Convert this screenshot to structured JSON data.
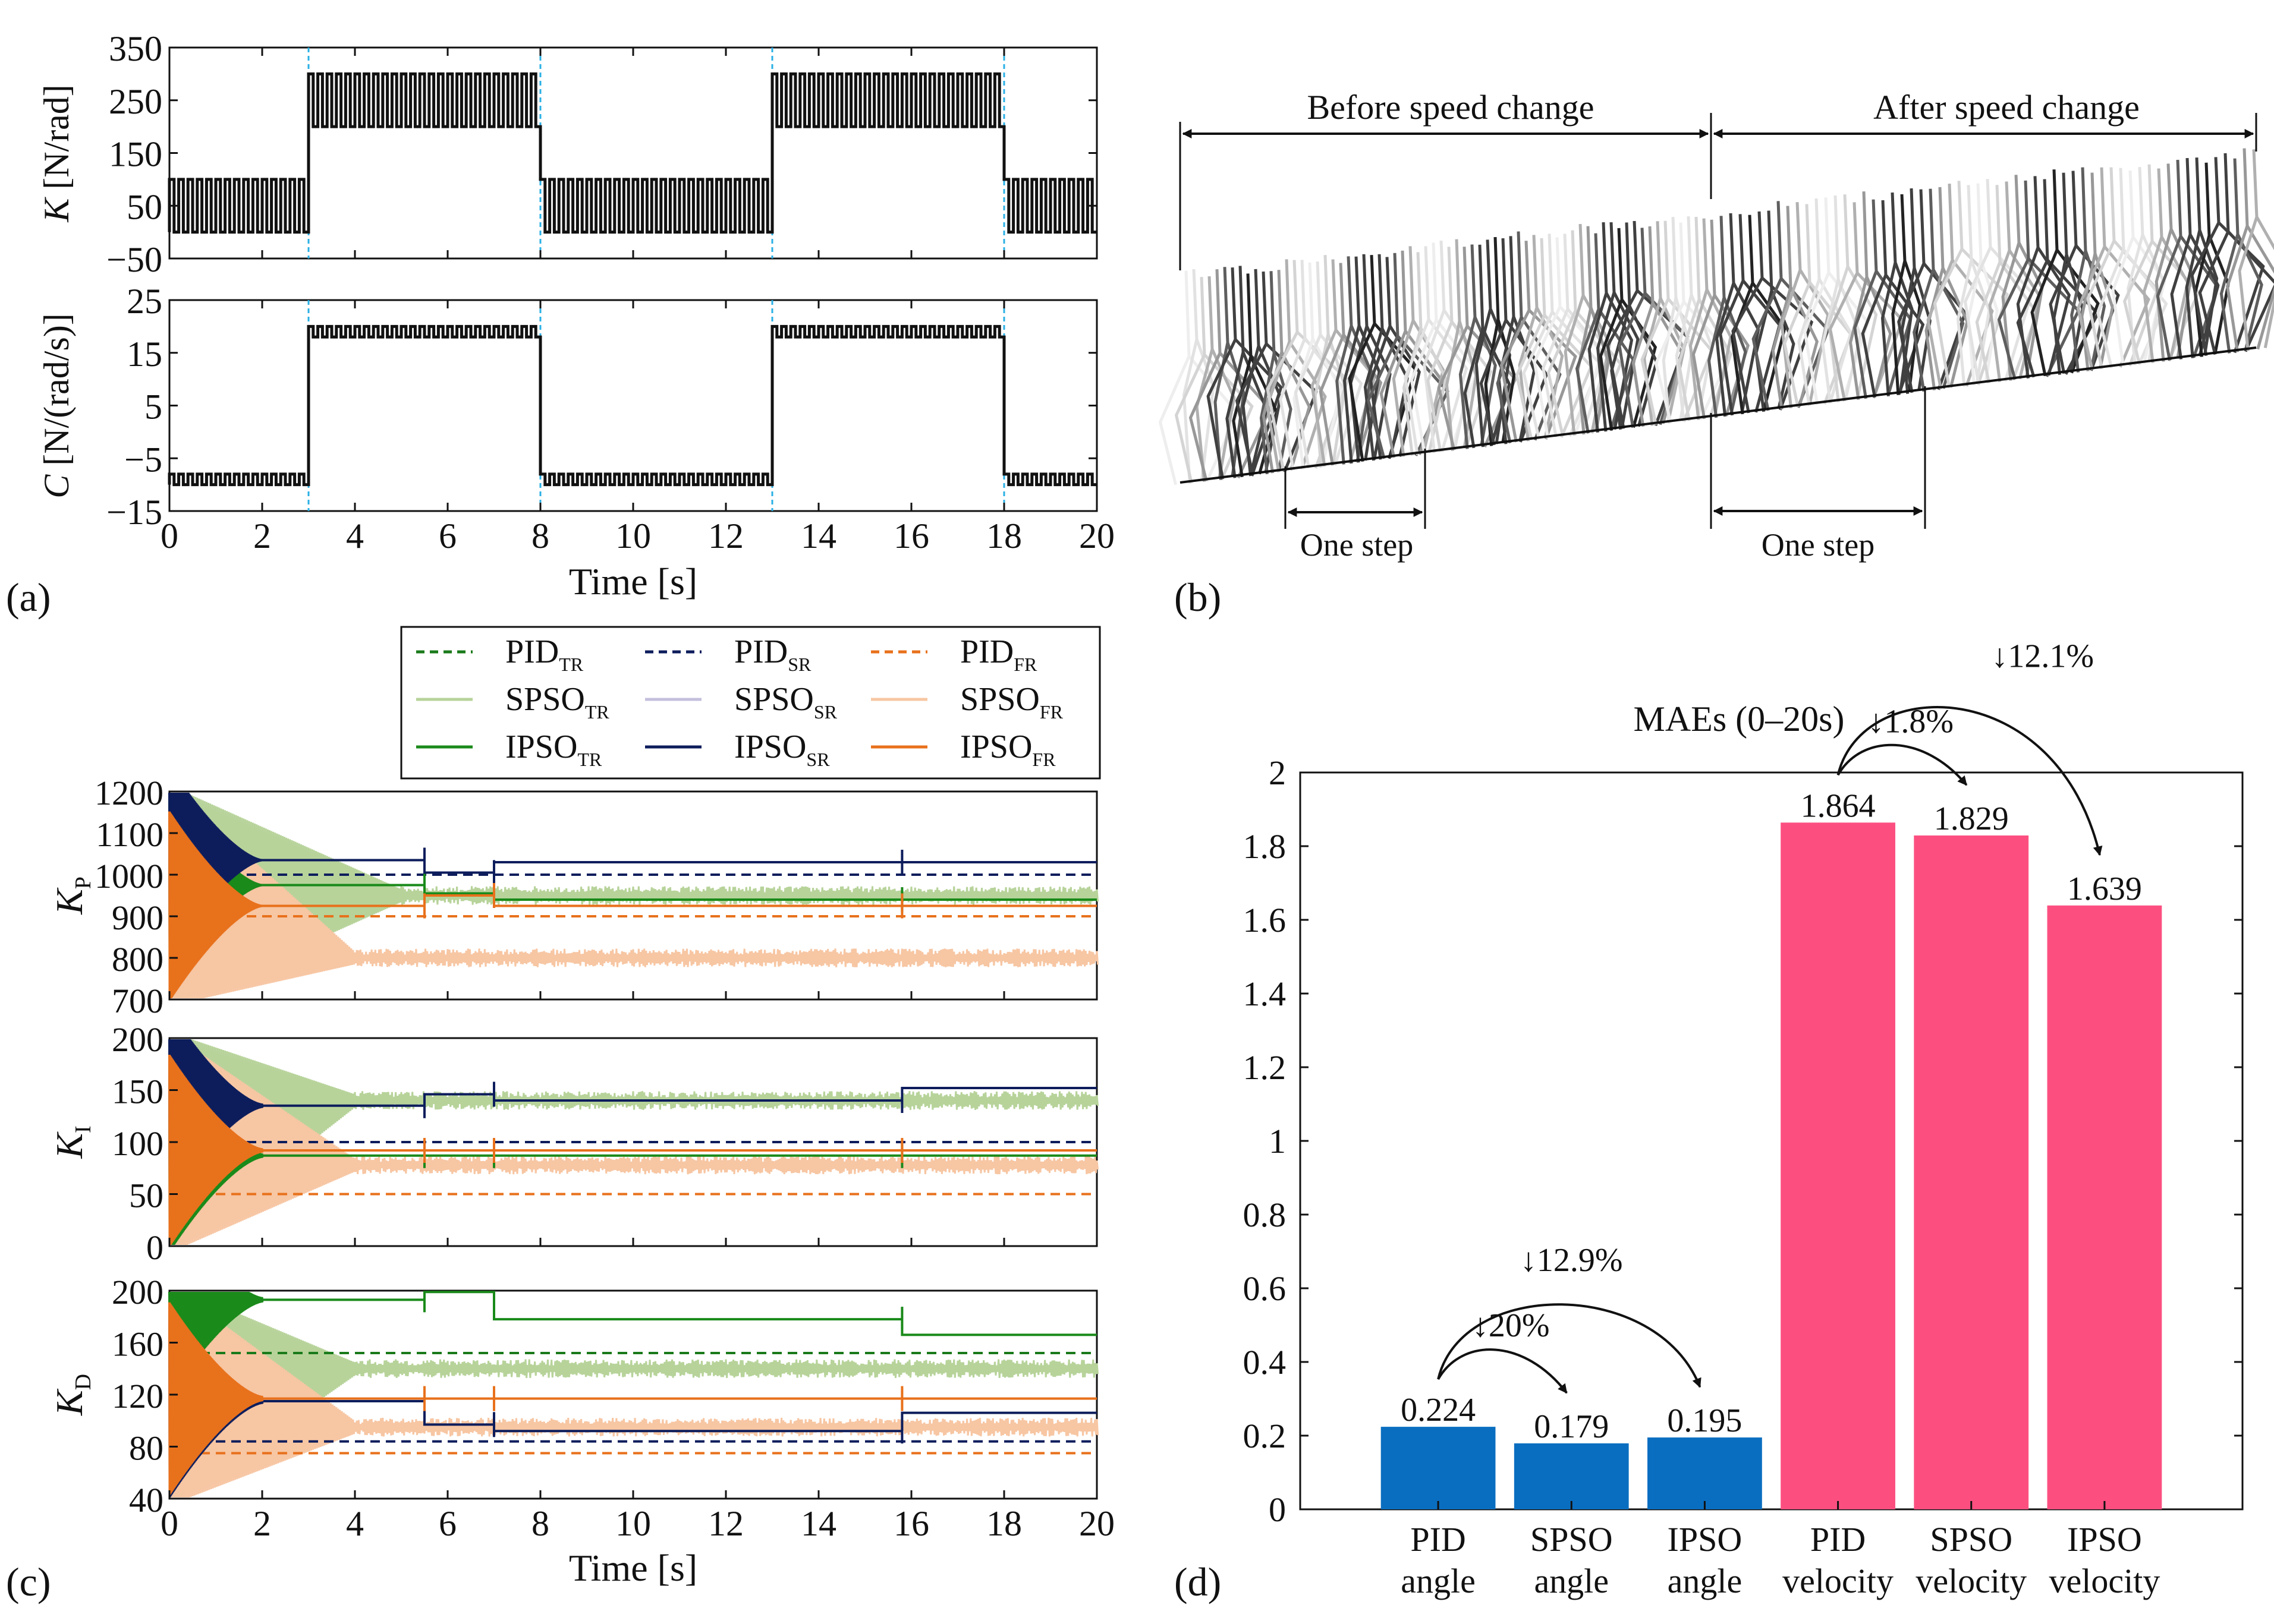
{
  "panels": {
    "a": {
      "label": "(a)",
      "x_label": "Time [s]",
      "x_ticks": [
        "0",
        "2",
        "4",
        "6",
        "8",
        "10",
        "12",
        "14",
        "16",
        "18",
        "20"
      ],
      "k_plot": {
        "y_label_sym": "K",
        "y_label_unit": " [N/rad]",
        "y_ticks": [
          "350",
          "250",
          "150",
          "50",
          "−50"
        ]
      },
      "c_plot": {
        "y_label_sym": "C",
        "y_label_unit": " [N/(rad/s)]",
        "y_ticks": [
          "25",
          "15",
          "5",
          "−5",
          "−15"
        ]
      }
    },
    "b": {
      "label": "(b)",
      "before_label": "Before speed change",
      "after_label": "After speed change",
      "step_label_1": "One step",
      "step_label_2": "One step"
    },
    "c": {
      "label": "(c)",
      "x_label": "Time [s]",
      "x_ticks": [
        "0",
        "2",
        "4",
        "6",
        "8",
        "10",
        "12",
        "14",
        "16",
        "18",
        "20"
      ],
      "kp": {
        "sym": "K",
        "sub": "P",
        "y_ticks": [
          "1200",
          "1100",
          "1000",
          "900",
          "800",
          "700"
        ]
      },
      "ki": {
        "sym": "K",
        "sub": "I",
        "y_ticks": [
          "200",
          "150",
          "100",
          "50",
          "0"
        ]
      },
      "kd": {
        "sym": "K",
        "sub": "D",
        "y_ticks": [
          "200",
          "160",
          "120",
          "80",
          "40"
        ]
      },
      "legend": [
        {
          "base": "PID",
          "sub": "TR",
          "color": "#1a7a1a",
          "style": "dashed"
        },
        {
          "base": "PID",
          "sub": "SR",
          "color": "#0d1d5c",
          "style": "dashed"
        },
        {
          "base": "PID",
          "sub": "FR",
          "color": "#e8711c",
          "style": "dashed"
        },
        {
          "base": "SPSO",
          "sub": "TR",
          "color": "#b7d39a",
          "style": "solid"
        },
        {
          "base": "SPSO",
          "sub": "SR",
          "color": "#c5bfdd",
          "style": "solid"
        },
        {
          "base": "SPSO",
          "sub": "FR",
          "color": "#f7c6a3",
          "style": "solid"
        },
        {
          "base": "IPSO",
          "sub": "TR",
          "color": "#1a8a1a",
          "style": "solid"
        },
        {
          "base": "IPSO",
          "sub": "SR",
          "color": "#0d1d5c",
          "style": "solid"
        },
        {
          "base": "IPSO",
          "sub": "FR",
          "color": "#e8711c",
          "style": "solid"
        }
      ]
    },
    "d": {
      "label": "(d)"
    }
  },
  "chart_data": [
    {
      "type": "line",
      "title": "",
      "panel": "(a) upper",
      "xlabel": "Time [s]",
      "ylabel": "K [N/rad]",
      "xlim": [
        0,
        20
      ],
      "ylim": [
        -50,
        350
      ],
      "segments": [
        {
          "t_start": 0,
          "t_end": 3,
          "low": 0,
          "high": 100
        },
        {
          "t_start": 3,
          "t_end": 8,
          "low": 200,
          "high": 300
        },
        {
          "t_start": 8,
          "t_end": 13,
          "low": 0,
          "high": 100
        },
        {
          "t_start": 13,
          "t_end": 18,
          "low": 200,
          "high": 300
        },
        {
          "t_start": 18,
          "t_end": 20,
          "low": 0,
          "high": 100
        }
      ],
      "switch_times": [
        3,
        8,
        13,
        18
      ]
    },
    {
      "type": "line",
      "title": "",
      "panel": "(a) lower",
      "xlabel": "Time [s]",
      "ylabel": "C [N/(rad/s)]",
      "xlim": [
        0,
        20
      ],
      "ylim": [
        -15,
        25
      ],
      "segments": [
        {
          "t_start": 0,
          "t_end": 3,
          "low": -10,
          "high": -8
        },
        {
          "t_start": 3,
          "t_end": 8,
          "low": 18,
          "high": 20
        },
        {
          "t_start": 8,
          "t_end": 13,
          "low": -10,
          "high": -8
        },
        {
          "t_start": 13,
          "t_end": 18,
          "low": 18,
          "high": 20
        },
        {
          "t_start": 18,
          "t_end": 20,
          "low": -10,
          "high": -8
        }
      ],
      "switch_times": [
        3,
        8,
        13,
        18
      ]
    },
    {
      "type": "line",
      "title": "",
      "panel": "(c) KP",
      "xlabel": "Time [s]",
      "ylabel": "KP",
      "xlim": [
        0,
        20
      ],
      "ylim": [
        700,
        1200
      ],
      "series": [
        {
          "name": "PID_TR",
          "values": [
            [
              0,
              1000
            ],
            [
              20,
              1000
            ]
          ]
        },
        {
          "name": "PID_SR",
          "values": [
            [
              0,
              1000
            ],
            [
              20,
              1000
            ]
          ]
        },
        {
          "name": "PID_FR",
          "values": [
            [
              0,
              900
            ],
            [
              20,
              900
            ]
          ]
        },
        {
          "name": "IPSO_TR",
          "values": [
            [
              2,
              975
            ],
            [
              5.5,
              975
            ],
            [
              5.5,
              955
            ],
            [
              7,
              955
            ],
            [
              7,
              940
            ],
            [
              20,
              940
            ]
          ]
        },
        {
          "name": "IPSO_SR",
          "values": [
            [
              2,
              1035
            ],
            [
              5.5,
              1035
            ],
            [
              5.5,
              1005
            ],
            [
              7,
              1005
            ],
            [
              7,
              1030
            ],
            [
              20,
              1030
            ]
          ]
        },
        {
          "name": "IPSO_FR",
          "values": [
            [
              2,
              925
            ],
            [
              5.5,
              925
            ],
            [
              5.5,
              950
            ],
            [
              7,
              950
            ],
            [
              7,
              925
            ],
            [
              20,
              925
            ]
          ]
        },
        {
          "name": "SPSO_TR",
          "values": [
            [
              5,
              950
            ],
            [
              20,
              945
            ]
          ]
        },
        {
          "name": "SPSO_FR",
          "values": [
            [
              4,
              800
            ],
            [
              20,
              800
            ]
          ]
        }
      ]
    },
    {
      "type": "line",
      "title": "",
      "panel": "(c) KI",
      "xlabel": "Time [s]",
      "ylabel": "KI",
      "xlim": [
        0,
        20
      ],
      "ylim": [
        0,
        200
      ],
      "series": [
        {
          "name": "PID_TR",
          "values": [
            [
              0,
              100
            ],
            [
              20,
              100
            ]
          ]
        },
        {
          "name": "PID_SR",
          "values": [
            [
              0,
              100
            ],
            [
              20,
              100
            ]
          ]
        },
        {
          "name": "PID_FR",
          "values": [
            [
              0,
              50
            ],
            [
              20,
              50
            ]
          ]
        },
        {
          "name": "IPSO_TR",
          "values": [
            [
              2,
              87
            ],
            [
              20,
              87
            ]
          ]
        },
        {
          "name": "IPSO_SR",
          "values": [
            [
              2,
              135
            ],
            [
              5.5,
              135
            ],
            [
              5.5,
              146
            ],
            [
              7,
              146
            ],
            [
              7,
              140
            ],
            [
              15.8,
              140
            ],
            [
              15.8,
              152
            ],
            [
              20,
              152
            ]
          ]
        },
        {
          "name": "IPSO_FR",
          "values": [
            [
              2,
              92
            ],
            [
              20,
              92
            ]
          ]
        },
        {
          "name": "SPSO_TR",
          "values": [
            [
              4,
              140
            ],
            [
              20,
              140
            ]
          ]
        },
        {
          "name": "SPSO_FR",
          "values": [
            [
              4,
              78
            ],
            [
              20,
              78
            ]
          ]
        }
      ]
    },
    {
      "type": "line",
      "title": "",
      "panel": "(c) KD",
      "xlabel": "Time [s]",
      "ylabel": "KD",
      "xlim": [
        0,
        20
      ],
      "ylim": [
        40,
        200
      ],
      "series": [
        {
          "name": "PID_TR",
          "values": [
            [
              0,
              152
            ],
            [
              20,
              152
            ]
          ]
        },
        {
          "name": "PID_SR",
          "values": [
            [
              0,
              84
            ],
            [
              20,
              84
            ]
          ]
        },
        {
          "name": "PID_FR",
          "values": [
            [
              0,
              75
            ],
            [
              20,
              75
            ]
          ]
        },
        {
          "name": "IPSO_TR",
          "values": [
            [
              2,
              193
            ],
            [
              5.5,
              193
            ],
            [
              5.5,
              199
            ],
            [
              7,
              199
            ],
            [
              7,
              178
            ],
            [
              15.8,
              178
            ],
            [
              15.8,
              166
            ],
            [
              20,
              166
            ]
          ]
        },
        {
          "name": "IPSO_SR",
          "values": [
            [
              2,
              115
            ],
            [
              5.5,
              115
            ],
            [
              5.5,
              97
            ],
            [
              7,
              97
            ],
            [
              7,
              92
            ],
            [
              15.8,
              92
            ],
            [
              15.8,
              106
            ],
            [
              20,
              106
            ]
          ]
        },
        {
          "name": "IPSO_FR",
          "values": [
            [
              2,
              117
            ],
            [
              20,
              117
            ]
          ]
        },
        {
          "name": "SPSO_TR",
          "values": [
            [
              4,
              140
            ],
            [
              20,
              140
            ]
          ]
        },
        {
          "name": "SPSO_FR",
          "values": [
            [
              4,
              95
            ],
            [
              20,
              95
            ]
          ]
        }
      ]
    },
    {
      "type": "bar",
      "title": "MAEs (0–20s)",
      "panel": "(d)",
      "categories": [
        [
          "PID",
          "angle"
        ],
        [
          "SPSO",
          "angle"
        ],
        [
          "IPSO",
          "angle"
        ],
        [
          "PID",
          "velocity"
        ],
        [
          "SPSO",
          "velocity"
        ],
        [
          "IPSO",
          "velocity"
        ]
      ],
      "values": [
        0.224,
        0.179,
        0.195,
        1.864,
        1.829,
        1.639
      ],
      "value_labels": [
        "0.224",
        "0.179",
        "0.195",
        "1.864",
        "1.829",
        "1.639"
      ],
      "colors": [
        "#0a6ec0",
        "#0a6ec0",
        "#0a6ec0",
        "#fc4f80",
        "#fc4f80",
        "#fc4f80"
      ],
      "ylim": [
        0,
        2
      ],
      "y_ticks": [
        "0",
        "0.2",
        "0.4",
        "0.6",
        "0.8",
        "1",
        "1.2",
        "1.4",
        "1.6",
        "1.8",
        "2"
      ],
      "annotations": [
        {
          "from": 0,
          "to": 1,
          "text": "↓20%"
        },
        {
          "from": 0,
          "to": 2,
          "text": "↓12.9%"
        },
        {
          "from": 3,
          "to": 4,
          "text": "↓1.8%"
        },
        {
          "from": 3,
          "to": 5,
          "text": "↓12.1%"
        }
      ]
    }
  ]
}
